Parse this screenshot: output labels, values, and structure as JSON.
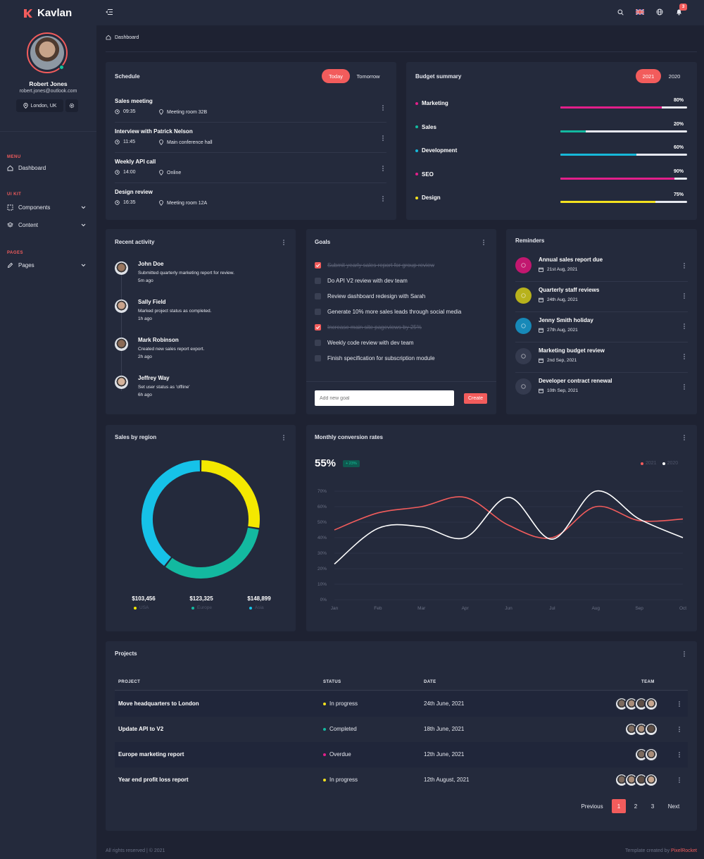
{
  "brand": {
    "name": "Kavlan",
    "accent": "#f25c5c"
  },
  "profile": {
    "name": "Robert Jones",
    "email": "robert.jones@outlook.com",
    "location": "London, UK"
  },
  "sidebar": {
    "sections": [
      {
        "title": "MENU",
        "items": [
          {
            "label": "Dashboard",
            "icon": "home-icon"
          }
        ]
      },
      {
        "title": "UI KIT",
        "items": [
          {
            "label": "Components",
            "icon": "grid-icon"
          },
          {
            "label": "Content",
            "icon": "layers-icon"
          }
        ]
      },
      {
        "title": "PAGES",
        "items": [
          {
            "label": "Pages",
            "icon": "pencil-icon"
          }
        ]
      }
    ]
  },
  "topbar": {
    "notification_count": "3"
  },
  "breadcrumb": {
    "label": "Dashboard"
  },
  "schedule": {
    "title": "Schedule",
    "tabs": [
      "Today",
      "Tomorrow"
    ],
    "events": [
      {
        "title": "Sales meeting",
        "time": "09:35",
        "place": "Meeting room 32B"
      },
      {
        "title": "Interview with Patrick Nelson",
        "time": "11:45",
        "place": "Main conference hall"
      },
      {
        "title": "Weekly API call",
        "time": "14:00",
        "place": "Online"
      },
      {
        "title": "Design review",
        "time": "16:35",
        "place": "Meeting room 12A"
      }
    ]
  },
  "budget": {
    "title": "Budget summary",
    "tabs": [
      "2021",
      "2020"
    ],
    "items": [
      {
        "label": "Marketing",
        "value": "80%",
        "fraction": 0.8,
        "color": "#e21f8a"
      },
      {
        "label": "Sales",
        "value": "20%",
        "fraction": 0.2,
        "color": "#13b9a0"
      },
      {
        "label": "Development",
        "value": "60%",
        "fraction": 0.6,
        "color": "#16b8d9"
      },
      {
        "label": "SEO",
        "value": "90%",
        "fraction": 0.9,
        "color": "#e21f8a"
      },
      {
        "label": "Design",
        "value": "75%",
        "fraction": 0.75,
        "color": "#f4e21f"
      }
    ]
  },
  "activity": {
    "title": "Recent activity",
    "items": [
      {
        "name": "John Doe",
        "text": "Submitted quarterly marketing report for review.",
        "time": "5m ago"
      },
      {
        "name": "Sally Field",
        "text": "Marked project status as completed.",
        "time": "1h ago"
      },
      {
        "name": "Mark Robinson",
        "text": "Created new sales report export.",
        "time": "2h ago"
      },
      {
        "name": "Jeffrey Way",
        "text": "Set user status as 'offline'",
        "time": "6h ago"
      }
    ]
  },
  "goals": {
    "title": "Goals",
    "items": [
      {
        "label": "Submit yearly sales report for group review",
        "done": true
      },
      {
        "label": "Do API V2 review with dev team",
        "done": false
      },
      {
        "label": "Review dashboard redesign with Sarah",
        "done": false
      },
      {
        "label": "Generate 10% more sales leads through social media",
        "done": false
      },
      {
        "label": "Increase main site pageviews by 25%",
        "done": true
      },
      {
        "label": "Weekly code review with dev team",
        "done": false
      },
      {
        "label": "Finish specification for subscription module",
        "done": false
      }
    ],
    "input_placeholder": "Add new goal",
    "create_label": "Create"
  },
  "reminders": {
    "title": "Reminders",
    "items": [
      {
        "title": "Annual sales report due",
        "date": "21st Aug, 2021",
        "color": "#c2176f",
        "icon": "warning-icon"
      },
      {
        "title": "Quarterly staff reviews",
        "date": "24th Aug, 2021",
        "color": "#b8b21c",
        "icon": "award-icon"
      },
      {
        "title": "Jenny Smith holiday",
        "date": "27th Aug, 2021",
        "color": "#1789b8",
        "icon": "person-icon"
      },
      {
        "title": "Marketing budget review",
        "date": "2nd Sep, 2021",
        "color": "#353b4f",
        "icon": "chat-icon"
      },
      {
        "title": "Developer contract renewal",
        "date": "10th Sep, 2021",
        "color": "#353b4f",
        "icon": "monitor-icon"
      }
    ]
  },
  "sales_region": {
    "title": "Sales by region",
    "regions": [
      {
        "label": "USA",
        "value": "$103,456",
        "color": "#f4e800"
      },
      {
        "label": "Europe",
        "value": "$123,325",
        "color": "#13b9a0"
      },
      {
        "label": "Asia",
        "value": "$148,899",
        "color": "#16c2e8"
      }
    ]
  },
  "conversion": {
    "title": "Monthly conversion rates",
    "headline": "55%",
    "change": "+ 23%",
    "legend": [
      {
        "label": "2021",
        "color": "#f25c5c"
      },
      {
        "label": "2020",
        "color": "#ffffff"
      }
    ]
  },
  "chart_data": [
    {
      "type": "pie",
      "title": "Sales by region",
      "categories": [
        "USA",
        "Europe",
        "Asia"
      ],
      "values": [
        103456,
        123325,
        148899
      ],
      "colors": [
        "#f4e800",
        "#13b9a0",
        "#16c2e8"
      ]
    },
    {
      "type": "line",
      "title": "Monthly conversion rates",
      "categories": [
        "Jan",
        "Feb",
        "Mar",
        "Apr",
        "Jun",
        "Jul",
        "Aug",
        "Sep",
        "Oct"
      ],
      "yticks": [
        "0%",
        "10%",
        "20%",
        "30%",
        "40%",
        "50%",
        "60%",
        "70%"
      ],
      "ylim": [
        0,
        70
      ],
      "grid": true,
      "legend": "top-right",
      "series": [
        {
          "name": "2021",
          "color": "#f25c5c",
          "values": [
            45,
            56,
            60,
            66,
            48,
            40,
            60,
            51,
            52
          ]
        },
        {
          "name": "2020",
          "color": "#ffffff",
          "values": [
            23,
            46,
            47,
            40,
            66,
            39,
            70,
            52,
            40
          ]
        }
      ]
    }
  ],
  "projects": {
    "title": "Projects",
    "headers": [
      "PROJECT",
      "STATUS",
      "DATE",
      "TEAM"
    ],
    "rows": [
      {
        "project": "Move headquarters to London",
        "status": "In progress",
        "status_color": "#f4e21f",
        "date": "24th June, 2021",
        "team": 4
      },
      {
        "project": "Update API to V2",
        "status": "Completed",
        "status_color": "#13b9a0",
        "date": "18th June, 2021",
        "team": 3
      },
      {
        "project": "Europe marketing report",
        "status": "Overdue",
        "status_color": "#e21f8a",
        "date": "12th June, 2021",
        "team": 2
      },
      {
        "project": "Year end profit loss report",
        "status": "In progress",
        "status_color": "#f4e21f",
        "date": "12th August, 2021",
        "team": 4
      }
    ],
    "pagination": {
      "previous": "Previous",
      "pages": [
        "1",
        "2",
        "3"
      ],
      "current": "1",
      "next": "Next"
    }
  },
  "footer": {
    "left": "All rights reserved | © 2021",
    "right_prefix": "Template created by",
    "right_brand": "PixelRocket"
  }
}
